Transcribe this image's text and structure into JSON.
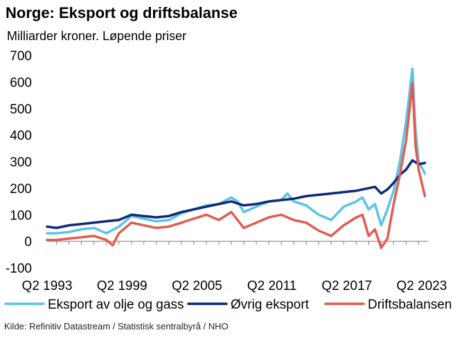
{
  "title": "Norge: Eksport og driftsbalanse",
  "subtitle": "Milliarder kroner. Løpende priser",
  "source": "Kilde: Refinitiv Datastream / Statistisk sentralbyrå / NHO",
  "colors": {
    "oil_gas": "#5bc3e8",
    "other_exports": "#0d2a78",
    "current_account": "#e35b4f",
    "grid": "#d9d9d9"
  },
  "chart_data": {
    "type": "line",
    "title": "Norge: Eksport og driftsbalanse",
    "subtitle": "Milliarder kroner. Løpende priser",
    "xlabel": "",
    "ylabel": "",
    "ylim": [
      -100,
      700
    ],
    "yticks": [
      -100,
      0,
      100,
      200,
      300,
      400,
      500,
      600,
      700
    ],
    "xlim": [
      1993.25,
      2023.75
    ],
    "xtick_labels": [
      "Q2 1993",
      "Q2 1999",
      "Q2 2005",
      "Q2 2011",
      "Q2 2017",
      "Q2 2023"
    ],
    "xtick_values": [
      1993.25,
      1999.25,
      2005.25,
      2011.25,
      2017.25,
      2023.25
    ],
    "grid": false,
    "legend": "bottom",
    "series": [
      {
        "name": "Eksport av olje og gass",
        "color": "#5bc3e8",
        "x": [
          1993.25,
          1994.0,
          1995.0,
          1996.0,
          1997.0,
          1998.0,
          1999.0,
          2000.0,
          2001.0,
          2002.0,
          2003.0,
          2004.0,
          2005.0,
          2006.0,
          2007.0,
          2008.0,
          2008.5,
          2009.0,
          2010.0,
          2011.0,
          2012.0,
          2012.5,
          2013.0,
          2014.0,
          2015.0,
          2016.0,
          2017.0,
          2018.0,
          2018.5,
          2019.0,
          2019.5,
          2020.0,
          2020.5,
          2021.0,
          2021.5,
          2022.0,
          2022.5,
          2022.75,
          2023.0,
          2023.5
        ],
        "values": [
          30,
          30,
          35,
          45,
          50,
          30,
          55,
          95,
          85,
          75,
          80,
          105,
          120,
          135,
          140,
          165,
          150,
          110,
          130,
          150,
          155,
          180,
          150,
          135,
          100,
          80,
          130,
          150,
          165,
          120,
          140,
          60,
          120,
          190,
          300,
          450,
          650,
          420,
          300,
          255
        ]
      },
      {
        "name": "Øvrig eksport",
        "color": "#0d2a78",
        "x": [
          1993.25,
          1994.0,
          1995.0,
          1996.0,
          1997.0,
          1998.0,
          1999.0,
          2000.0,
          2001.0,
          2002.0,
          2003.0,
          2004.0,
          2005.0,
          2006.0,
          2007.0,
          2008.0,
          2009.0,
          2010.0,
          2011.0,
          2012.0,
          2013.0,
          2014.0,
          2015.0,
          2016.0,
          2017.0,
          2018.0,
          2019.0,
          2019.5,
          2020.0,
          2020.5,
          2021.0,
          2021.5,
          2022.0,
          2022.5,
          2023.0,
          2023.5
        ],
        "values": [
          55,
          50,
          60,
          65,
          70,
          75,
          80,
          100,
          95,
          90,
          95,
          110,
          120,
          130,
          140,
          150,
          135,
          140,
          150,
          155,
          160,
          170,
          175,
          180,
          185,
          190,
          200,
          205,
          180,
          195,
          220,
          250,
          270,
          305,
          290,
          295
        ]
      },
      {
        "name": "Driftsbalansen",
        "color": "#e35b4f",
        "x": [
          1993.25,
          1994.0,
          1995.0,
          1996.0,
          1997.0,
          1998.0,
          1998.5,
          1999.0,
          2000.0,
          2001.0,
          2002.0,
          2003.0,
          2004.0,
          2005.0,
          2006.0,
          2007.0,
          2008.0,
          2009.0,
          2010.0,
          2011.0,
          2012.0,
          2013.0,
          2014.0,
          2015.0,
          2016.0,
          2017.0,
          2018.0,
          2018.5,
          2019.0,
          2019.5,
          2020.0,
          2020.5,
          2021.0,
          2021.5,
          2022.0,
          2022.5,
          2022.75,
          2023.0,
          2023.5
        ],
        "values": [
          5,
          5,
          10,
          15,
          20,
          5,
          -15,
          30,
          70,
          60,
          50,
          55,
          70,
          85,
          100,
          80,
          110,
          50,
          70,
          90,
          100,
          80,
          70,
          40,
          20,
          60,
          90,
          100,
          20,
          45,
          -25,
          10,
          140,
          250,
          380,
          595,
          360,
          270,
          170
        ]
      }
    ]
  }
}
